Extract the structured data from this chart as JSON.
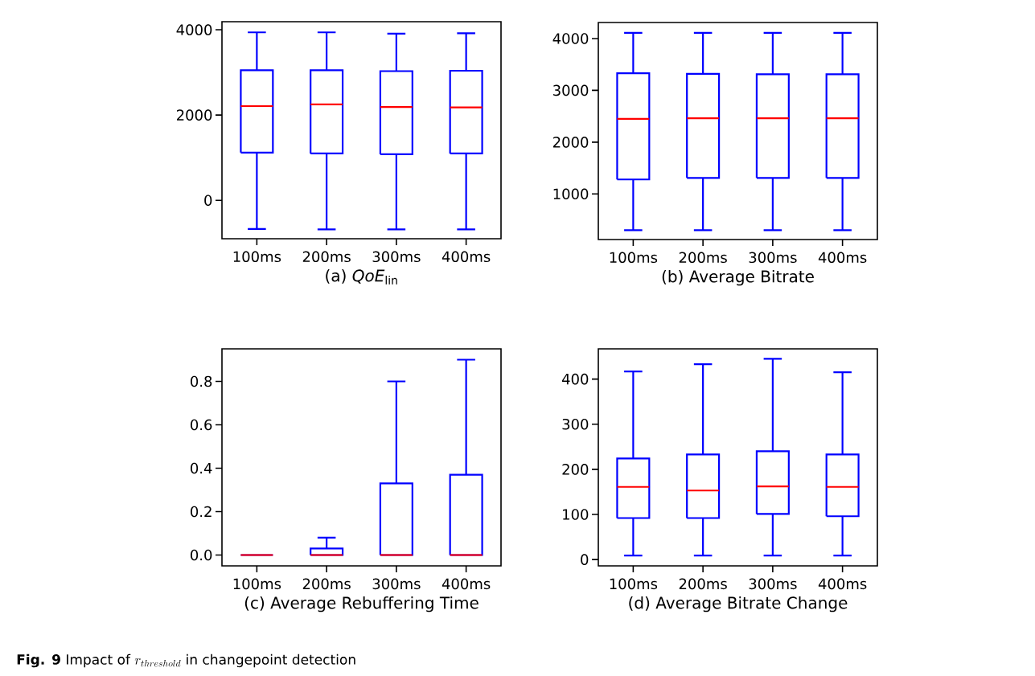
{
  "chart_data": [
    {
      "type": "box",
      "xlabel": "(a) *QoE*$_{lin}$",
      "categories": [
        "100ms",
        "200ms",
        "300ms",
        "400ms"
      ],
      "color": "#0000ff",
      "boxes": [
        {
          "low": -670,
          "q1": 1120,
          "median": 2210,
          "q3": 3050,
          "high": 3940
        },
        {
          "low": -680,
          "q1": 1100,
          "median": 2250,
          "q3": 3050,
          "high": 3940
        },
        {
          "low": -680,
          "q1": 1080,
          "median": 2190,
          "q3": 3030,
          "high": 3910
        },
        {
          "low": -680,
          "q1": 1100,
          "median": 2180,
          "q3": 3040,
          "high": 3920
        }
      ],
      "ylim": [
        -900,
        4190
      ],
      "yticks": [
        0,
        2000,
        4000
      ],
      "annotations": [
        "**Fig. 9** Impact of",
        "r_{threshold}",
        "in changepoint detection"
      ]
    },
    {
      "type": "box",
      "xlabel": "(b) Average Bitrate",
      "categories": [
        "100ms",
        "200ms",
        "300ms",
        "400ms"
      ],
      "color": "#0000ff",
      "boxes": [
        {
          "low": 300,
          "q1": 1280,
          "median": 2450,
          "q3": 3330,
          "high": 4110
        },
        {
          "low": 300,
          "q1": 1310,
          "median": 2460,
          "q3": 3320,
          "high": 4110
        },
        {
          "low": 300,
          "q1": 1310,
          "median": 2460,
          "q3": 3310,
          "high": 4110
        },
        {
          "low": 300,
          "q1": 1310,
          "median": 2460,
          "q3": 3310,
          "high": 4110
        }
      ],
      "ylim": [
        120,
        4310
      ],
      "yticks": [
        1000,
        2000,
        3000,
        4000
      ]
    },
    {
      "type": "box",
      "xlabel": "(c) Average Rebuffering Time",
      "categories": [
        "100ms",
        "200ms",
        "300ms",
        "400ms"
      ],
      "color": "#0000ff",
      "boxes": [
        {
          "low": 0,
          "q1": 0,
          "median": 0,
          "q3": 0,
          "high": 0
        },
        {
          "low": 0,
          "q1": 0,
          "median": 0,
          "q3": 0.03,
          "high": 0.08
        },
        {
          "low": 0,
          "q1": 0,
          "median": 0,
          "q3": 0.33,
          "high": 0.8
        },
        {
          "low": 0,
          "q1": 0,
          "median": 0,
          "q3": 0.37,
          "high": 0.9
        }
      ],
      "ylim": [
        -0.05,
        0.95
      ],
      "yticks": [
        {
          "value": 0,
          "label": "0.0"
        },
        0.2,
        0.4,
        0.6,
        0.8
      ]
    },
    {
      "type": "box",
      "xlabel": "(d) Average Bitrate Change",
      "categories": [
        "100ms",
        "200ms",
        "300ms",
        "400ms"
      ],
      "color": "#0000ff",
      "boxes": [
        {
          "low": 9,
          "q1": 92,
          "median": 161,
          "q3": 224,
          "high": 417
        },
        {
          "low": 9,
          "q1": 92,
          "median": 153,
          "q3": 233,
          "high": 433
        },
        {
          "low": 9,
          "q1": 101,
          "median": 162,
          "q3": 240,
          "high": 445
        },
        {
          "low": 9,
          "q1": 96,
          "median": 161,
          "q3": 233,
          "high": 415
        }
      ],
      "ylim": [
        -14,
        467
      ],
      "yticks": [
        0,
        100,
        200,
        300,
        400
      ]
    }
  ]
}
